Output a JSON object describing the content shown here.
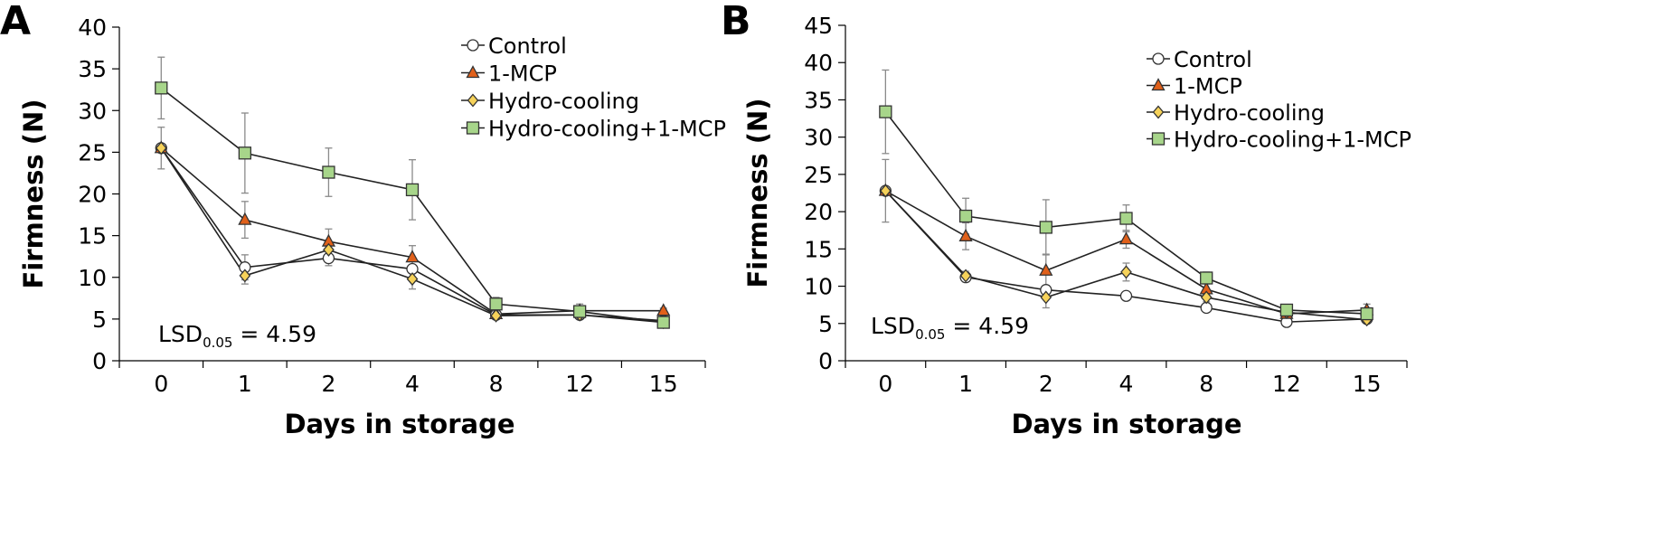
{
  "series_styles": {
    "Control": {
      "marker": "circle",
      "fill": "#ffffff"
    },
    "1-MCP": {
      "marker": "triangle",
      "fill": "#e0601a"
    },
    "Hydro-cooling": {
      "marker": "diamond",
      "fill": "#f6d25a"
    },
    "Hydro-cooling+1-MCP": {
      "marker": "square",
      "fill": "#a7d58a"
    }
  },
  "chart_data": [
    {
      "panel": "A",
      "type": "line",
      "xlabel": "Days in storage",
      "ylabel": "Firmness (N)",
      "categories": [
        "0",
        "1",
        "2",
        "4",
        "8",
        "12",
        "15"
      ],
      "ylim": [
        0,
        40
      ],
      "yticks": [
        0,
        5,
        10,
        15,
        20,
        25,
        30,
        35,
        40
      ],
      "lsd": {
        "main": "LSD",
        "sub": "0.05",
        "value": " = 4.59"
      },
      "series": [
        {
          "name": "Control",
          "values": [
            25.5,
            11.2,
            12.3,
            11.0,
            5.5,
            5.5,
            4.8
          ],
          "errors": [
            2.5,
            1.5,
            0.9,
            1.0,
            0.5,
            0.5,
            0.3
          ]
        },
        {
          "name": "1-MCP",
          "values": [
            25.5,
            16.9,
            14.3,
            12.4,
            5.6,
            6.0,
            6.0
          ],
          "errors": [
            0,
            2.2,
            1.5,
            1.4,
            0.4,
            0.5,
            0.3
          ]
        },
        {
          "name": "Hydro-cooling",
          "values": [
            25.5,
            10.2,
            13.3,
            9.8,
            5.4,
            5.5,
            4.6
          ],
          "errors": [
            0,
            1.0,
            1.0,
            1.2,
            0.4,
            0.4,
            0.3
          ]
        },
        {
          "name": "Hydro-cooling+1-MCP",
          "values": [
            32.7,
            24.9,
            22.6,
            20.5,
            6.8,
            5.9,
            4.6
          ],
          "errors": [
            3.7,
            4.8,
            2.9,
            3.6,
            0.8,
            0.9,
            0.4
          ]
        }
      ]
    },
    {
      "panel": "B",
      "type": "line",
      "xlabel": "Days in storage",
      "ylabel": "Firmness (N)",
      "categories": [
        "0",
        "1",
        "2",
        "4",
        "8",
        "12",
        "15"
      ],
      "ylim": [
        0,
        45
      ],
      "yticks": [
        0,
        5,
        10,
        15,
        20,
        25,
        30,
        35,
        40,
        45
      ],
      "lsd": {
        "main": "LSD",
        "sub": "0.05",
        "value": " = 4.59"
      },
      "series": [
        {
          "name": "Control",
          "values": [
            22.8,
            11.2,
            9.5,
            8.7,
            7.1,
            5.2,
            5.6
          ],
          "errors": [
            4.2,
            0.6,
            0.6,
            0.4,
            0.3,
            0.3,
            0.3
          ]
        },
        {
          "name": "1-MCP",
          "values": [
            22.8,
            16.7,
            12.1,
            16.3,
            9.6,
            6.3,
            6.8
          ],
          "errors": [
            0,
            1.8,
            2.2,
            1.2,
            0.8,
            0.5,
            0.8
          ]
        },
        {
          "name": "Hydro-cooling",
          "values": [
            22.8,
            11.4,
            8.5,
            11.9,
            8.5,
            6.5,
            5.5
          ],
          "errors": [
            0,
            0.6,
            1.4,
            1.2,
            0.6,
            0.5,
            0.3
          ]
        },
        {
          "name": "Hydro-cooling+1-MCP",
          "values": [
            33.4,
            19.4,
            17.9,
            19.1,
            11.1,
            6.8,
            6.3
          ],
          "errors": [
            5.6,
            2.4,
            3.7,
            1.8,
            0.8,
            0.6,
            0.6
          ]
        }
      ]
    }
  ]
}
